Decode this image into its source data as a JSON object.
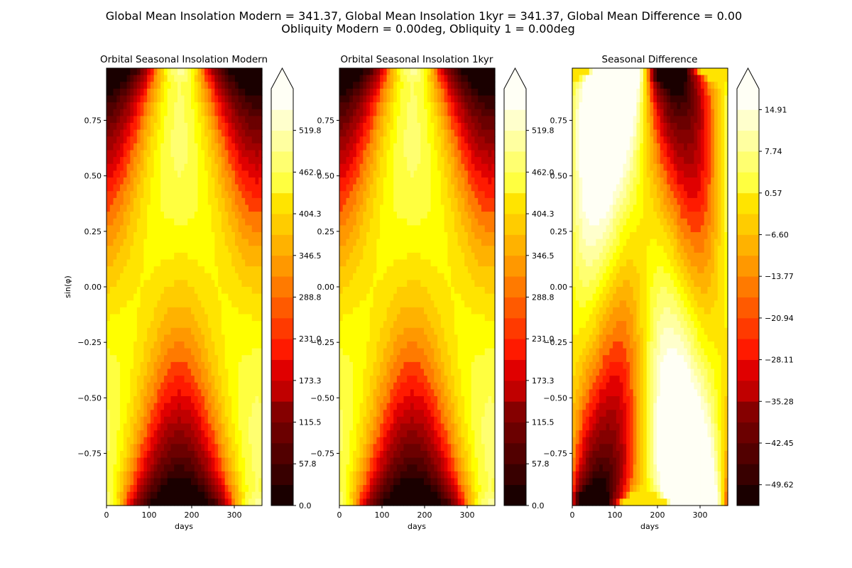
{
  "figure": {
    "suptitle_line1": "Global Mean Insolation Modern = 341.37, Global Mean Insolation 1kyr = 341.37, Global Mean Difference = 0.00",
    "suptitle_line2": "Obliquity Modern = 0.00deg, Obliquity 1 = 0.00deg"
  },
  "colors": {
    "hot_scale": [
      "#1a0000",
      "#380000",
      "#520000",
      "#6b0000",
      "#850000",
      "#a00000",
      "#c00000",
      "#e00000",
      "#ff1a00",
      "#ff3a00",
      "#ff5a00",
      "#ff7a00",
      "#ff9800",
      "#ffb200",
      "#ffcc00",
      "#ffe400",
      "#ffff00",
      "#ffff40",
      "#ffff70",
      "#ffffa0",
      "#ffffcc",
      "#fffff5"
    ]
  },
  "chart_data": [
    {
      "type": "heatmap",
      "title": "Orbital Seasonal Insolation Modern",
      "xlabel": "days",
      "ylabel": "sin(φ)",
      "xlim": [
        0,
        365
      ],
      "ylim": [
        -0.985,
        0.985
      ],
      "xticks": [
        0,
        100,
        200,
        300
      ],
      "yticks": [
        0.75,
        0.5,
        0.25,
        0.0,
        -0.25,
        -0.5,
        -0.75
      ],
      "ytick_labels": [
        "0.75",
        "0.50",
        "0.25",
        "0.00",
        "−0.25",
        "−0.50",
        "−0.75"
      ],
      "field": "insolation",
      "colorbar": {
        "ticks": [
          0.0,
          57.8,
          115.5,
          173.3,
          231.0,
          288.8,
          346.5,
          404.3,
          462.0,
          519.8
        ],
        "tick_labels": [
          "0.0",
          "57.8",
          "115.5",
          "173.3",
          "231.0",
          "288.8",
          "346.5",
          "404.3",
          "462.0",
          "519.8"
        ],
        "range": [
          0,
          577.5
        ],
        "levels": 20,
        "extend": "max"
      }
    },
    {
      "type": "heatmap",
      "title": "Orbital Seasonal Insolation 1kyr",
      "xlabel": "days",
      "ylabel": "",
      "xlim": [
        0,
        365
      ],
      "ylim": [
        -0.985,
        0.985
      ],
      "xticks": [
        0,
        100,
        200,
        300
      ],
      "yticks": [
        0.75,
        0.5,
        0.25,
        0.0,
        -0.25,
        -0.5,
        -0.75
      ],
      "ytick_labels": [
        "0.75",
        "0.50",
        "0.25",
        "0.00",
        "−0.25",
        "−0.50",
        "−0.75"
      ],
      "field": "insolation",
      "colorbar": {
        "ticks": [
          0.0,
          57.8,
          115.5,
          173.3,
          231.0,
          288.8,
          346.5,
          404.3,
          462.0,
          519.8
        ],
        "tick_labels": [
          "0.0",
          "57.8",
          "115.5",
          "173.3",
          "231.0",
          "288.8",
          "346.5",
          "404.3",
          "462.0",
          "519.8"
        ],
        "range": [
          0,
          577.5
        ],
        "levels": 20,
        "extend": "max"
      }
    },
    {
      "type": "heatmap",
      "title": "Seasonal Difference",
      "xlabel": "days",
      "ylabel": "",
      "xlim": [
        0,
        365
      ],
      "ylim": [
        -0.985,
        0.985
      ],
      "xticks": [
        0,
        100,
        200,
        300
      ],
      "yticks": [
        0.75,
        0.5,
        0.25,
        0.0,
        -0.25,
        -0.5,
        -0.75
      ],
      "ytick_labels": [
        "0.75",
        "0.50",
        "0.25",
        "0.00",
        "−0.25",
        "−0.50",
        "−0.75"
      ],
      "field": "difference",
      "colorbar": {
        "ticks": [
          -49.62,
          -42.45,
          -35.28,
          -28.11,
          -20.94,
          -13.77,
          -6.6,
          0.57,
          7.74,
          14.91
        ],
        "tick_labels": [
          "−49.62",
          "−42.45",
          "−35.28",
          "−28.11",
          "−20.94",
          "−13.77",
          "−6.60",
          "0.57",
          "7.74",
          "14.91"
        ],
        "range": [
          -53.2,
          18.5
        ],
        "levels": 20,
        "extend": "max"
      }
    }
  ]
}
